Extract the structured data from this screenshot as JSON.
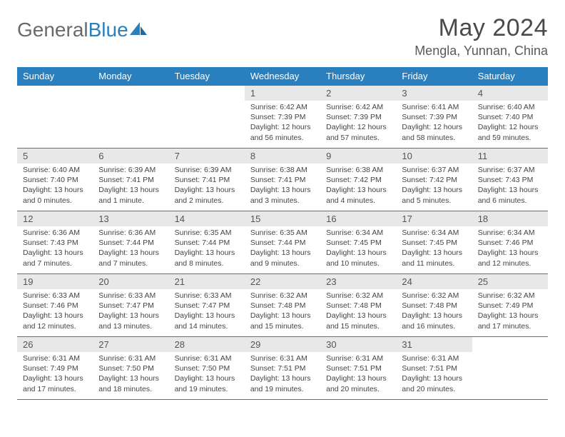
{
  "logo": {
    "general": "General",
    "blue": "Blue"
  },
  "title": "May 2024",
  "location": "Mengla, Yunnan, China",
  "colors": {
    "header_blue": "#2a7fbf",
    "daynum_bg": "#e8e8e8",
    "text_gray": "#5a5a5a",
    "body_text": "#444444"
  },
  "day_names": [
    "Sunday",
    "Monday",
    "Tuesday",
    "Wednesday",
    "Thursday",
    "Friday",
    "Saturday"
  ],
  "weeks": [
    [
      {
        "n": "",
        "sr": "",
        "ss": "",
        "dl": ""
      },
      {
        "n": "",
        "sr": "",
        "ss": "",
        "dl": ""
      },
      {
        "n": "",
        "sr": "",
        "ss": "",
        "dl": ""
      },
      {
        "n": "1",
        "sr": "Sunrise: 6:42 AM",
        "ss": "Sunset: 7:39 PM",
        "dl": "Daylight: 12 hours and 56 minutes."
      },
      {
        "n": "2",
        "sr": "Sunrise: 6:42 AM",
        "ss": "Sunset: 7:39 PM",
        "dl": "Daylight: 12 hours and 57 minutes."
      },
      {
        "n": "3",
        "sr": "Sunrise: 6:41 AM",
        "ss": "Sunset: 7:39 PM",
        "dl": "Daylight: 12 hours and 58 minutes."
      },
      {
        "n": "4",
        "sr": "Sunrise: 6:40 AM",
        "ss": "Sunset: 7:40 PM",
        "dl": "Daylight: 12 hours and 59 minutes."
      }
    ],
    [
      {
        "n": "5",
        "sr": "Sunrise: 6:40 AM",
        "ss": "Sunset: 7:40 PM",
        "dl": "Daylight: 13 hours and 0 minutes."
      },
      {
        "n": "6",
        "sr": "Sunrise: 6:39 AM",
        "ss": "Sunset: 7:41 PM",
        "dl": "Daylight: 13 hours and 1 minute."
      },
      {
        "n": "7",
        "sr": "Sunrise: 6:39 AM",
        "ss": "Sunset: 7:41 PM",
        "dl": "Daylight: 13 hours and 2 minutes."
      },
      {
        "n": "8",
        "sr": "Sunrise: 6:38 AM",
        "ss": "Sunset: 7:41 PM",
        "dl": "Daylight: 13 hours and 3 minutes."
      },
      {
        "n": "9",
        "sr": "Sunrise: 6:38 AM",
        "ss": "Sunset: 7:42 PM",
        "dl": "Daylight: 13 hours and 4 minutes."
      },
      {
        "n": "10",
        "sr": "Sunrise: 6:37 AM",
        "ss": "Sunset: 7:42 PM",
        "dl": "Daylight: 13 hours and 5 minutes."
      },
      {
        "n": "11",
        "sr": "Sunrise: 6:37 AM",
        "ss": "Sunset: 7:43 PM",
        "dl": "Daylight: 13 hours and 6 minutes."
      }
    ],
    [
      {
        "n": "12",
        "sr": "Sunrise: 6:36 AM",
        "ss": "Sunset: 7:43 PM",
        "dl": "Daylight: 13 hours and 7 minutes."
      },
      {
        "n": "13",
        "sr": "Sunrise: 6:36 AM",
        "ss": "Sunset: 7:44 PM",
        "dl": "Daylight: 13 hours and 7 minutes."
      },
      {
        "n": "14",
        "sr": "Sunrise: 6:35 AM",
        "ss": "Sunset: 7:44 PM",
        "dl": "Daylight: 13 hours and 8 minutes."
      },
      {
        "n": "15",
        "sr": "Sunrise: 6:35 AM",
        "ss": "Sunset: 7:44 PM",
        "dl": "Daylight: 13 hours and 9 minutes."
      },
      {
        "n": "16",
        "sr": "Sunrise: 6:34 AM",
        "ss": "Sunset: 7:45 PM",
        "dl": "Daylight: 13 hours and 10 minutes."
      },
      {
        "n": "17",
        "sr": "Sunrise: 6:34 AM",
        "ss": "Sunset: 7:45 PM",
        "dl": "Daylight: 13 hours and 11 minutes."
      },
      {
        "n": "18",
        "sr": "Sunrise: 6:34 AM",
        "ss": "Sunset: 7:46 PM",
        "dl": "Daylight: 13 hours and 12 minutes."
      }
    ],
    [
      {
        "n": "19",
        "sr": "Sunrise: 6:33 AM",
        "ss": "Sunset: 7:46 PM",
        "dl": "Daylight: 13 hours and 12 minutes."
      },
      {
        "n": "20",
        "sr": "Sunrise: 6:33 AM",
        "ss": "Sunset: 7:47 PM",
        "dl": "Daylight: 13 hours and 13 minutes."
      },
      {
        "n": "21",
        "sr": "Sunrise: 6:33 AM",
        "ss": "Sunset: 7:47 PM",
        "dl": "Daylight: 13 hours and 14 minutes."
      },
      {
        "n": "22",
        "sr": "Sunrise: 6:32 AM",
        "ss": "Sunset: 7:48 PM",
        "dl": "Daylight: 13 hours and 15 minutes."
      },
      {
        "n": "23",
        "sr": "Sunrise: 6:32 AM",
        "ss": "Sunset: 7:48 PM",
        "dl": "Daylight: 13 hours and 15 minutes."
      },
      {
        "n": "24",
        "sr": "Sunrise: 6:32 AM",
        "ss": "Sunset: 7:48 PM",
        "dl": "Daylight: 13 hours and 16 minutes."
      },
      {
        "n": "25",
        "sr": "Sunrise: 6:32 AM",
        "ss": "Sunset: 7:49 PM",
        "dl": "Daylight: 13 hours and 17 minutes."
      }
    ],
    [
      {
        "n": "26",
        "sr": "Sunrise: 6:31 AM",
        "ss": "Sunset: 7:49 PM",
        "dl": "Daylight: 13 hours and 17 minutes."
      },
      {
        "n": "27",
        "sr": "Sunrise: 6:31 AM",
        "ss": "Sunset: 7:50 PM",
        "dl": "Daylight: 13 hours and 18 minutes."
      },
      {
        "n": "28",
        "sr": "Sunrise: 6:31 AM",
        "ss": "Sunset: 7:50 PM",
        "dl": "Daylight: 13 hours and 19 minutes."
      },
      {
        "n": "29",
        "sr": "Sunrise: 6:31 AM",
        "ss": "Sunset: 7:51 PM",
        "dl": "Daylight: 13 hours and 19 minutes."
      },
      {
        "n": "30",
        "sr": "Sunrise: 6:31 AM",
        "ss": "Sunset: 7:51 PM",
        "dl": "Daylight: 13 hours and 20 minutes."
      },
      {
        "n": "31",
        "sr": "Sunrise: 6:31 AM",
        "ss": "Sunset: 7:51 PM",
        "dl": "Daylight: 13 hours and 20 minutes."
      },
      {
        "n": "",
        "sr": "",
        "ss": "",
        "dl": ""
      }
    ]
  ]
}
